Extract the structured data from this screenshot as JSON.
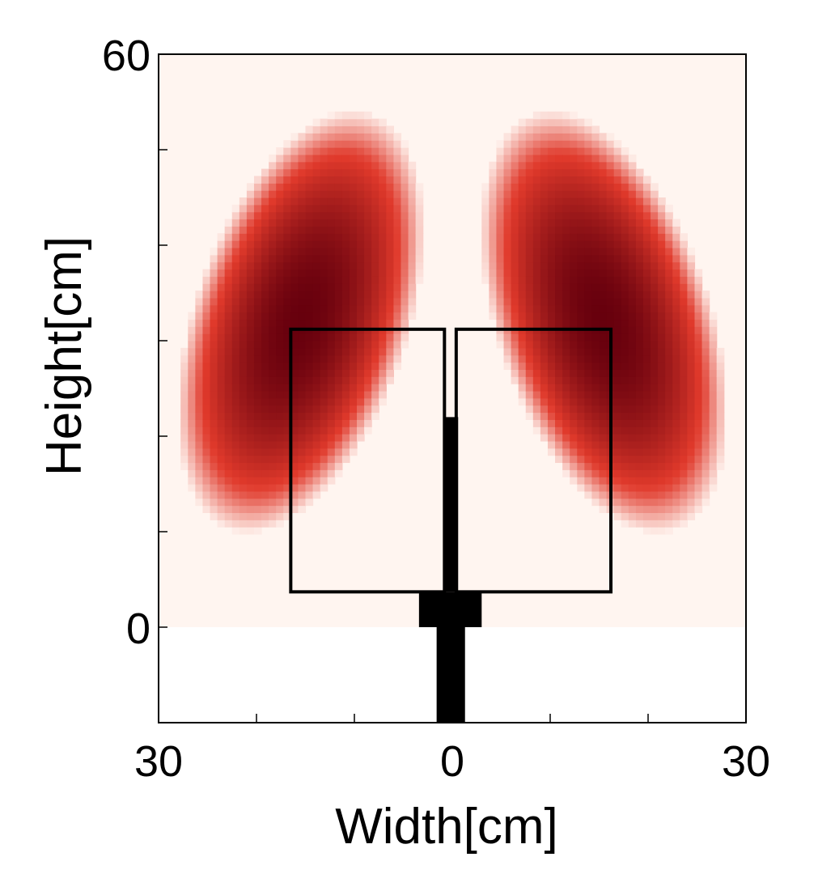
{
  "chart_data": {
    "type": "heatmap",
    "xlabel": "Width[cm]",
    "ylabel": "Height[cm]",
    "xlim": [
      -30,
      30
    ],
    "ylim": [
      -10,
      60
    ],
    "x_tick_labels": [
      {
        "value": -30,
        "label": "30"
      },
      {
        "value": 0,
        "label": "0"
      },
      {
        "value": 30,
        "label": "30"
      }
    ],
    "y_tick_labels": [
      {
        "value": 0,
        "label": "0"
      },
      {
        "value": 60,
        "label": "60"
      }
    ],
    "minor_x_ticks": [
      -20,
      -10,
      10,
      20
    ],
    "minor_y_ticks": [
      10,
      20,
      30,
      40,
      50
    ],
    "field_extent": {
      "x": [
        -30,
        30
      ],
      "y": [
        0,
        60
      ]
    },
    "field_blobs": [
      {
        "center": [
          -15.5,
          32
        ],
        "radius_x": 10.5,
        "radius_y": 22,
        "tilt_deg": -18,
        "peak": 1.0
      },
      {
        "center": [
          15.5,
          32
        ],
        "radius_x": 10.5,
        "radius_y": 22,
        "tilt_deg": 18,
        "peak": 1.0
      }
    ],
    "colormap": {
      "low": "#fff5f0",
      "mid": "#e0392b",
      "high": "#67000d"
    },
    "antenna_outline": {
      "left_patch": {
        "x": [
          -16.5,
          -0.8
        ],
        "y": [
          3.7,
          31.2
        ]
      },
      "right_patch": {
        "x": [
          0.4,
          16.2
        ],
        "y": [
          3.7,
          31.2
        ]
      },
      "feed_line": {
        "x": [
          -0.9,
          0.6
        ],
        "y": [
          3.7,
          22
        ]
      },
      "feed_block": {
        "x": [
          -3.4,
          3.0
        ],
        "y": [
          0,
          3.7
        ]
      },
      "feed_stem": {
        "x": [
          -1.6,
          1.3
        ],
        "y": [
          -10,
          0
        ]
      }
    }
  }
}
